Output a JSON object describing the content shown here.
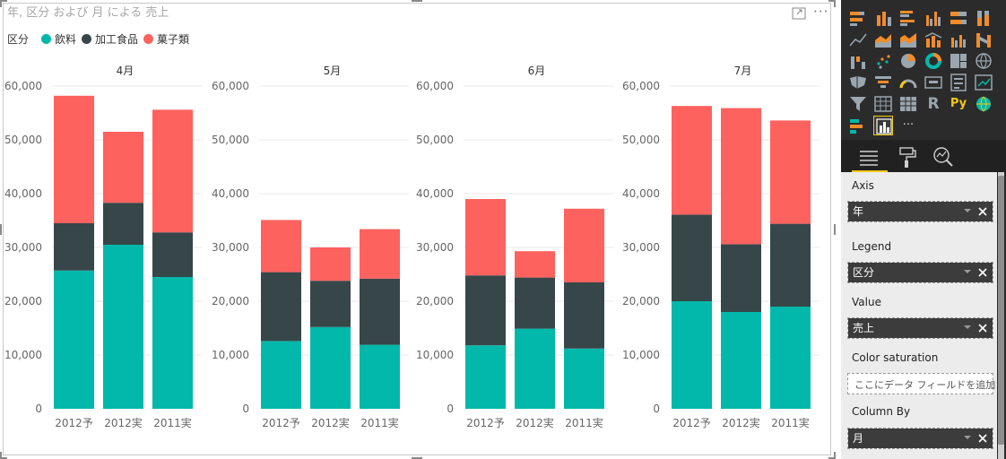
{
  "visual": {
    "title": "年, 区分 および 月 による 売上",
    "focus_icon": "focus-mode-icon",
    "more_icon": "more-options-icon",
    "more_glyph": "···"
  },
  "chart_data": {
    "type": "bar",
    "stacked": true,
    "legend": {
      "title": "区分",
      "position": "top-left",
      "items": [
        {
          "name": "飲料",
          "color": "#01B8AA"
        },
        {
          "name": "加工食品",
          "color": "#374649"
        },
        {
          "name": "菓子類",
          "color": "#FD625E"
        }
      ]
    },
    "categories": [
      "2012予",
      "2012実",
      "2011実"
    ],
    "ylim": [
      0,
      60000
    ],
    "yticks": [
      0,
      10000,
      20000,
      30000,
      40000,
      50000,
      60000
    ],
    "ytick_labels": [
      "0",
      "10,000",
      "20,000",
      "30,000",
      "40,000",
      "50,000",
      "60,000"
    ],
    "grid": true,
    "panels": [
      {
        "title": "4月",
        "series": [
          {
            "name": "飲料",
            "values": [
              25700,
              30500,
              24500
            ]
          },
          {
            "name": "加工食品",
            "values": [
              8800,
              7800,
              8300
            ]
          },
          {
            "name": "菓子類",
            "values": [
              23700,
              13200,
              22800
            ]
          }
        ]
      },
      {
        "title": "5月",
        "series": [
          {
            "name": "飲料",
            "values": [
              12600,
              15200,
              11900
            ]
          },
          {
            "name": "加工食品",
            "values": [
              12800,
              8600,
              12300
            ]
          },
          {
            "name": "菓子類",
            "values": [
              9700,
              6200,
              9200
            ]
          }
        ]
      },
      {
        "title": "6月",
        "series": [
          {
            "name": "飲料",
            "values": [
              11800,
              14900,
              11200
            ]
          },
          {
            "name": "加工食品",
            "values": [
              13000,
              9500,
              12300
            ]
          },
          {
            "name": "菓子類",
            "values": [
              14200,
              4900,
              13700
            ]
          }
        ]
      },
      {
        "title": "7月",
        "series": [
          {
            "name": "飲料",
            "values": [
              20000,
              18000,
              19000
            ]
          },
          {
            "name": "加工食品",
            "values": [
              16100,
              12600,
              15400
            ]
          },
          {
            "name": "菓子類",
            "values": [
              20200,
              25300,
              19200
            ]
          }
        ]
      }
    ]
  },
  "pane": {
    "viz_icons": [
      "stacked-bar-icon",
      "stacked-column-icon",
      "clustered-bar-icon",
      "clustered-column-icon",
      "100-stacked-bar-icon",
      "100-stacked-column-icon",
      "line-chart-icon",
      "area-chart-icon",
      "stacked-area-icon",
      "line-column-icon",
      "line-clustered-column-icon",
      "ribbon-chart-icon",
      "waterfall-icon",
      "scatter-icon",
      "pie-icon",
      "donut-icon",
      "treemap-icon",
      "map-icon",
      "filled-map-icon",
      "funnel-icon",
      "gauge-icon",
      "card-icon",
      "multi-row-card-icon",
      "kpi-icon",
      "slicer-icon",
      "table-icon",
      "matrix-icon",
      "r-visual-icon",
      "python-visual-icon",
      "globe-icon",
      "custom-visual-icon",
      "selected-visual-icon",
      "more-visuals-icon"
    ],
    "r_glyph": "R",
    "py_glyph": "Py",
    "more_glyph": "···",
    "tabs": [
      "fields-tab-icon",
      "format-tab-icon",
      "analytics-tab-icon"
    ],
    "wells": [
      {
        "label": "Axis",
        "value": "年"
      },
      {
        "label": "Legend",
        "value": "区分"
      },
      {
        "label": "Value",
        "value": "売上"
      },
      {
        "label": "Color saturation",
        "placeholder": "ここにデータ フィールドを追加して..."
      },
      {
        "label": "Column By",
        "value": "月"
      }
    ]
  }
}
